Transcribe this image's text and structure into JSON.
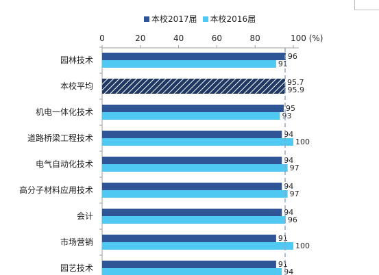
{
  "chart_data": {
    "type": "bar",
    "orientation": "horizontal",
    "categories": [
      "园林技术",
      "本校平均",
      "机电一体化技术",
      "道路桥梁工程技术",
      "电气自动化技术",
      "高分子材料应用技术",
      "会计",
      "市场营销",
      "园艺技术"
    ],
    "series": [
      {
        "name": "本校2017届",
        "values": [
          96,
          95.7,
          95,
          94,
          94,
          94,
          94,
          91,
          91
        ],
        "color": "#2f5597"
      },
      {
        "name": "本校2016届",
        "values": [
          91,
          95.9,
          93,
          100,
          97,
          97,
          96,
          100,
          94
        ],
        "color": "#4fc9f2"
      }
    ],
    "value_labels": [
      [
        "96",
        "91"
      ],
      [
        "95.7",
        "95.9"
      ],
      [
        "95",
        "93"
      ],
      [
        "94",
        "100"
      ],
      [
        "94",
        "97"
      ],
      [
        "94",
        "97"
      ],
      [
        "94",
        "96"
      ],
      [
        "91",
        "100"
      ],
      [
        "91",
        "94"
      ]
    ],
    "highlight_category": "本校平均",
    "xlim": [
      0,
      100
    ],
    "xticks": [
      "0",
      "20",
      "40",
      "60",
      "80",
      "100 (%)"
    ],
    "reference_line_value": 95.7,
    "axis_position": "top",
    "legend_position": "top"
  }
}
